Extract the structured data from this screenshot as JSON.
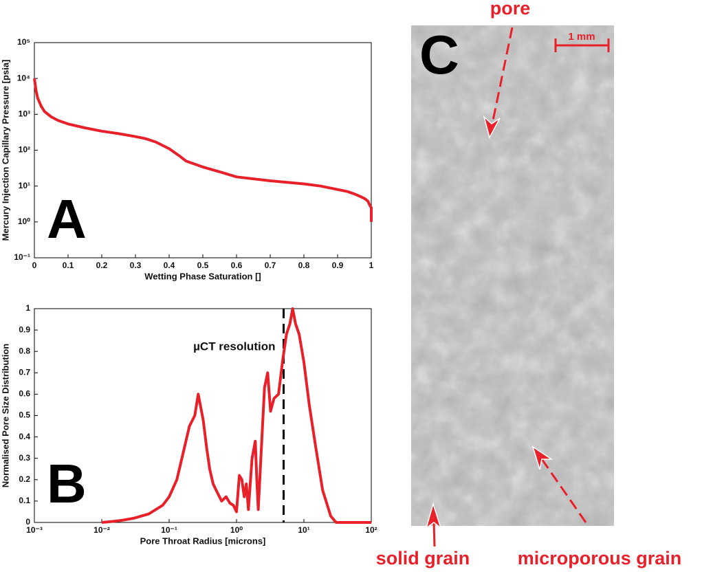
{
  "chart_data": [
    {
      "type": "line",
      "panel_label": "A",
      "xlabel": "Wetting Phase Saturation []",
      "ylabel": "Mercury Injection Capillary Pressure [psia]",
      "color": "#e8202a",
      "ylog": true,
      "x": [
        0,
        0.005,
        0.01,
        0.02,
        0.03,
        0.05,
        0.07,
        0.1,
        0.15,
        0.2,
        0.25,
        0.3,
        0.33,
        0.36,
        0.4,
        0.43,
        0.45,
        0.5,
        0.55,
        0.6,
        0.7,
        0.8,
        0.85,
        0.9,
        0.93,
        0.95,
        0.97,
        0.98,
        0.99,
        0.995,
        1,
        1
      ],
      "values": [
        10000,
        4500,
        2800,
        1700,
        1200,
        850,
        680,
        540,
        420,
        340,
        290,
        240,
        210,
        170,
        110,
        70,
        50,
        34,
        25,
        18,
        14,
        11.5,
        10,
        8,
        7,
        6,
        5,
        4.5,
        3.8,
        3,
        2.5,
        1
      ],
      "xlim": [
        0,
        1
      ],
      "ylim": [
        0.1,
        100000
      ],
      "xticks": [
        0,
        0.1,
        0.2,
        0.3,
        0.4,
        0.5,
        0.6,
        0.7,
        0.8,
        0.9,
        1
      ],
      "yticks": [
        {
          "value": 0.1,
          "label": "10⁻¹"
        },
        {
          "value": 1,
          "label": "10⁰"
        },
        {
          "value": 10,
          "label": "10¹"
        },
        {
          "value": 100,
          "label": "10²"
        },
        {
          "value": 1000,
          "label": "10³"
        },
        {
          "value": 10000,
          "label": "10⁴"
        },
        {
          "value": 100000,
          "label": "10⁵"
        }
      ]
    },
    {
      "type": "line",
      "panel_label": "B",
      "xlabel": "Pore Throat Radius [microns]",
      "ylabel": "Normalised Pore Size Distribution",
      "color": "#e8202a",
      "xlog": true,
      "x": [
        0.01,
        0.015,
        0.02,
        0.03,
        0.05,
        0.08,
        0.1,
        0.13,
        0.16,
        0.2,
        0.24,
        0.27,
        0.29,
        0.32,
        0.36,
        0.4,
        0.45,
        0.5,
        0.6,
        0.7,
        0.8,
        0.9,
        1.0,
        1.1,
        1.2,
        1.3,
        1.4,
        1.5,
        1.7,
        1.9,
        2.0,
        2.1,
        2.3,
        2.6,
        2.9,
        3.2,
        3.6,
        4.2,
        4.8,
        5.5,
        6.2,
        6.8,
        7.5,
        8.5,
        10,
        12,
        15,
        19,
        25,
        30,
        50,
        100
      ],
      "values": [
        0,
        0.005,
        0.01,
        0.02,
        0.04,
        0.08,
        0.12,
        0.2,
        0.32,
        0.45,
        0.5,
        0.6,
        0.55,
        0.48,
        0.35,
        0.25,
        0.18,
        0.15,
        0.1,
        0.12,
        0.09,
        0.08,
        0.05,
        0.22,
        0.2,
        0.12,
        0.18,
        0.06,
        0.3,
        0.38,
        0.2,
        0.06,
        0.3,
        0.63,
        0.7,
        0.52,
        0.58,
        0.6,
        0.75,
        0.88,
        0.93,
        1.0,
        0.93,
        0.88,
        0.75,
        0.55,
        0.35,
        0.15,
        0.03,
        0,
        0,
        0
      ],
      "xlim": [
        0.001,
        100
      ],
      "ylim": [
        0,
        1
      ],
      "xticks": [
        {
          "value": 0.001,
          "label": "10⁻³"
        },
        {
          "value": 0.01,
          "label": "10⁻²"
        },
        {
          "value": 0.1,
          "label": "10⁻¹"
        },
        {
          "value": 1,
          "label": "10⁰"
        },
        {
          "value": 10,
          "label": "10¹"
        },
        {
          "value": 100,
          "label": "10²"
        }
      ],
      "yticks": [
        0,
        0.1,
        0.2,
        0.3,
        0.4,
        0.5,
        0.6,
        0.7,
        0.8,
        0.9,
        1
      ],
      "vline": 5,
      "annotation": "µCT resolution"
    }
  ],
  "panel_c": {
    "label": "C",
    "scale_bar": "1 mm",
    "pore": "pore",
    "solid_grain": "solid grain",
    "microporous_grain": "microporous grain"
  }
}
